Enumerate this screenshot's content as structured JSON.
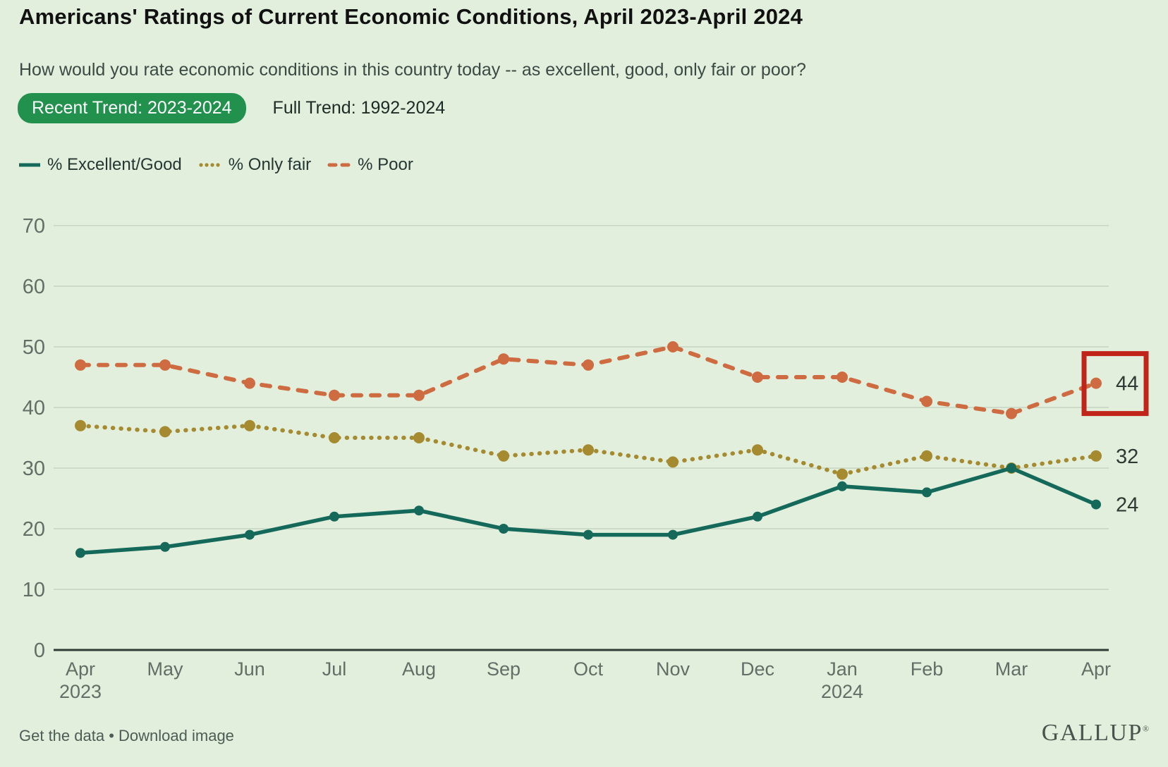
{
  "header": {
    "title": "Americans' Ratings of Current Economic Conditions, April 2023-April 2024",
    "subtitle": "How would you rate economic conditions in this country today -- as excellent, good, only fair or poor?"
  },
  "tabs": [
    {
      "label": "Recent Trend: 2023-2024",
      "active": true,
      "bg": "#21914d",
      "fg": "#ffffff"
    },
    {
      "label": "Full Trend: 1992-2024",
      "active": false,
      "bg": "transparent",
      "fg": "#1d2b26"
    }
  ],
  "chart_data": {
    "type": "line",
    "categories": [
      "Apr 2023",
      "May",
      "Jun",
      "Jul",
      "Aug",
      "Sep",
      "Oct",
      "Nov",
      "Dec",
      "Jan 2024",
      "Feb",
      "Mar",
      "Apr"
    ],
    "x_tick_labels": [
      [
        "Apr",
        "2023"
      ],
      [
        "May"
      ],
      [
        "Jun"
      ],
      [
        "Jul"
      ],
      [
        "Aug"
      ],
      [
        "Sep"
      ],
      [
        "Oct"
      ],
      [
        "Nov"
      ],
      [
        "Dec"
      ],
      [
        "Jan",
        "2024"
      ],
      [
        "Feb"
      ],
      [
        "Mar"
      ],
      [
        "Apr"
      ]
    ],
    "series": [
      {
        "name": "% Excellent/Good",
        "style": "solid",
        "color": "#15695a",
        "values": [
          16,
          17,
          19,
          22,
          23,
          20,
          19,
          19,
          22,
          27,
          26,
          30,
          24
        ],
        "end_label": "24"
      },
      {
        "name": "% Only fair",
        "style": "dotted",
        "color": "#a58a2f",
        "values": [
          37,
          36,
          37,
          35,
          35,
          32,
          33,
          31,
          33,
          29,
          32,
          30,
          32
        ],
        "end_label": "32"
      },
      {
        "name": "% Poor",
        "style": "dashed",
        "color": "#cf6b40",
        "values": [
          47,
          47,
          44,
          42,
          42,
          48,
          47,
          50,
          45,
          45,
          41,
          39,
          44
        ],
        "end_label": "44"
      }
    ],
    "ylim": [
      0,
      70
    ],
    "yticks": [
      0,
      10,
      20,
      30,
      40,
      50,
      60,
      70
    ],
    "grid": "horizontal",
    "legend_position": "top-left",
    "highlight": {
      "series": "% Poor",
      "category": "Apr 2024",
      "value": 44,
      "box_color": "#c1251a"
    },
    "colors": {
      "grid": "#ccdbc8",
      "axis": "#2e3c35",
      "tick_text": "#636e67",
      "end_label_text": "#2e3a34"
    }
  },
  "footer": {
    "link1": "Get the data",
    "separator": "•",
    "link2": "Download image",
    "logo": "GALLUP",
    "logo_mark": "®"
  }
}
